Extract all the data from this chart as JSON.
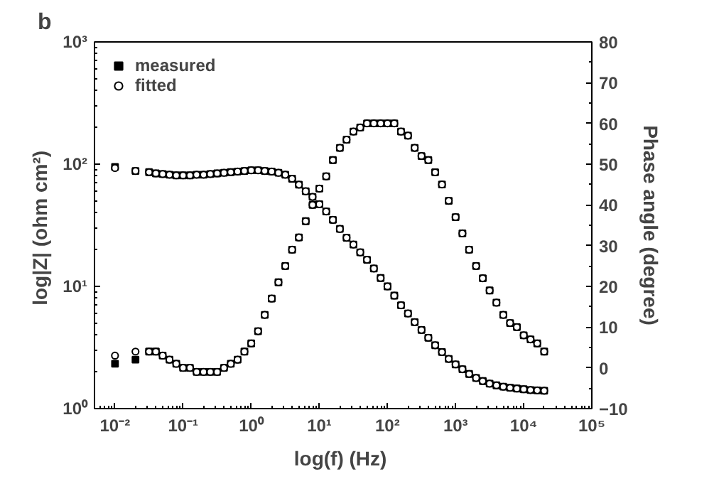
{
  "chart_data": {
    "type": "scatter",
    "title": "b",
    "xlabel": "log(f)  (Hz)",
    "ylabel": "log|Z|  (ohm cm²)",
    "y2label": "Phase angle (degree)",
    "log": "xy",
    "legend": "top left",
    "grid": false,
    "x": [
      0.01,
      0.02,
      0.0316,
      0.0398,
      0.0501,
      0.0631,
      0.0794,
      0.1,
      0.126,
      0.158,
      0.2,
      0.251,
      0.316,
      0.398,
      0.501,
      0.631,
      0.794,
      1,
      1.26,
      1.58,
      2.0,
      2.51,
      3.16,
      3.98,
      5.01,
      6.31,
      7.94,
      10,
      12.6,
      15.8,
      20,
      25.1,
      31.6,
      39.8,
      50.1,
      63.1,
      79.4,
      100,
      126,
      158,
      200,
      251,
      316,
      398,
      501,
      631,
      794,
      1000,
      1260,
      1580,
      2000,
      2510,
      3160,
      3980,
      5010,
      6310,
      7940,
      10000,
      12600,
      15800,
      20000
    ],
    "xlim": [
      0.005,
      100000
    ],
    "xticks": [
      {
        "value": 0.01,
        "label": "10⁻²"
      },
      {
        "value": 0.1,
        "label": "10⁻¹"
      },
      {
        "value": 1,
        "label": "10⁰"
      },
      {
        "value": 10,
        "label": "10¹"
      },
      {
        "value": 100,
        "label": "10²"
      },
      {
        "value": 1000,
        "label": "10³"
      },
      {
        "value": 10000,
        "label": "10⁴"
      },
      {
        "value": 100000,
        "label": "10⁵"
      }
    ],
    "ylim": [
      1,
      1000
    ],
    "yticks": [
      {
        "value": 1,
        "label": "10⁰"
      },
      {
        "value": 10,
        "label": "10¹"
      },
      {
        "value": 100,
        "label": "10²"
      },
      {
        "value": 1000,
        "label": "10³"
      }
    ],
    "y2lim": [
      -10,
      80
    ],
    "y2ticks": [
      -10,
      0,
      10,
      20,
      30,
      40,
      50,
      60,
      70,
      80
    ],
    "series": [
      {
        "name": "measured",
        "color": "#000000",
        "marker": "square",
        "values": [
          95,
          88,
          86,
          84,
          83,
          82,
          81,
          81,
          81,
          82,
          82,
          83,
          84,
          85,
          86,
          87,
          88,
          89,
          89,
          88,
          87,
          85,
          82,
          76,
          68,
          60,
          54,
          47,
          41,
          35,
          29.5,
          25,
          22,
          19,
          16.5,
          14,
          11.7,
          10,
          8.4,
          7,
          6,
          5.1,
          4.4,
          3.8,
          3.3,
          2.9,
          2.55,
          2.3,
          2.1,
          1.92,
          1.78,
          1.68,
          1.6,
          1.55,
          1.51,
          1.48,
          1.46,
          1.44,
          1.42,
          1.41,
          1.4
        ]
      },
      {
        "name": "fitted",
        "color": "#000000",
        "marker": "circle",
        "values": [
          93,
          88,
          86,
          84,
          83,
          82,
          81,
          81,
          81,
          82,
          82,
          83,
          84,
          85,
          86,
          87,
          88,
          89,
          89,
          88,
          87,
          85,
          82,
          76,
          68,
          60,
          54,
          47,
          41,
          35,
          29.5,
          25,
          22,
          19,
          16.5,
          14,
          11.7,
          10,
          8.4,
          7,
          6,
          5.1,
          4.4,
          3.8,
          3.3,
          2.9,
          2.55,
          2.3,
          2.1,
          1.92,
          1.78,
          1.68,
          1.6,
          1.55,
          1.51,
          1.48,
          1.46,
          1.44,
          1.42,
          1.41,
          1.4
        ]
      },
      {
        "axis": "y2",
        "color": "#000000",
        "marker": "square",
        "values": [
          1,
          2,
          4,
          4,
          3,
          2,
          1,
          0,
          0,
          -1,
          -1,
          -1,
          -1,
          0,
          1,
          2,
          4,
          6,
          9,
          13,
          17,
          21,
          25,
          29,
          32,
          36,
          40,
          44,
          47,
          51,
          54,
          56,
          58,
          59,
          60,
          60,
          60,
          60,
          60,
          58,
          57,
          54,
          52,
          51,
          48,
          45,
          41,
          37,
          33,
          29,
          25,
          22,
          19,
          16,
          13,
          11,
          10,
          8,
          7,
          6,
          4
        ]
      },
      {
        "axis": "y2",
        "color": "#000000",
        "marker": "circle",
        "values": [
          3,
          4,
          4,
          4,
          3,
          2,
          1,
          0,
          0,
          -1,
          -1,
          -1,
          -1,
          0,
          1,
          2,
          4,
          6,
          9,
          13,
          17,
          21,
          25,
          29,
          32,
          36,
          40,
          44,
          47,
          51,
          54,
          56,
          58,
          59,
          60,
          60,
          60,
          60,
          60,
          58,
          57,
          54,
          52,
          51,
          48,
          45,
          41,
          37,
          33,
          29,
          25,
          22,
          19,
          16,
          13,
          11,
          10,
          8,
          7,
          6,
          4
        ]
      }
    ]
  }
}
